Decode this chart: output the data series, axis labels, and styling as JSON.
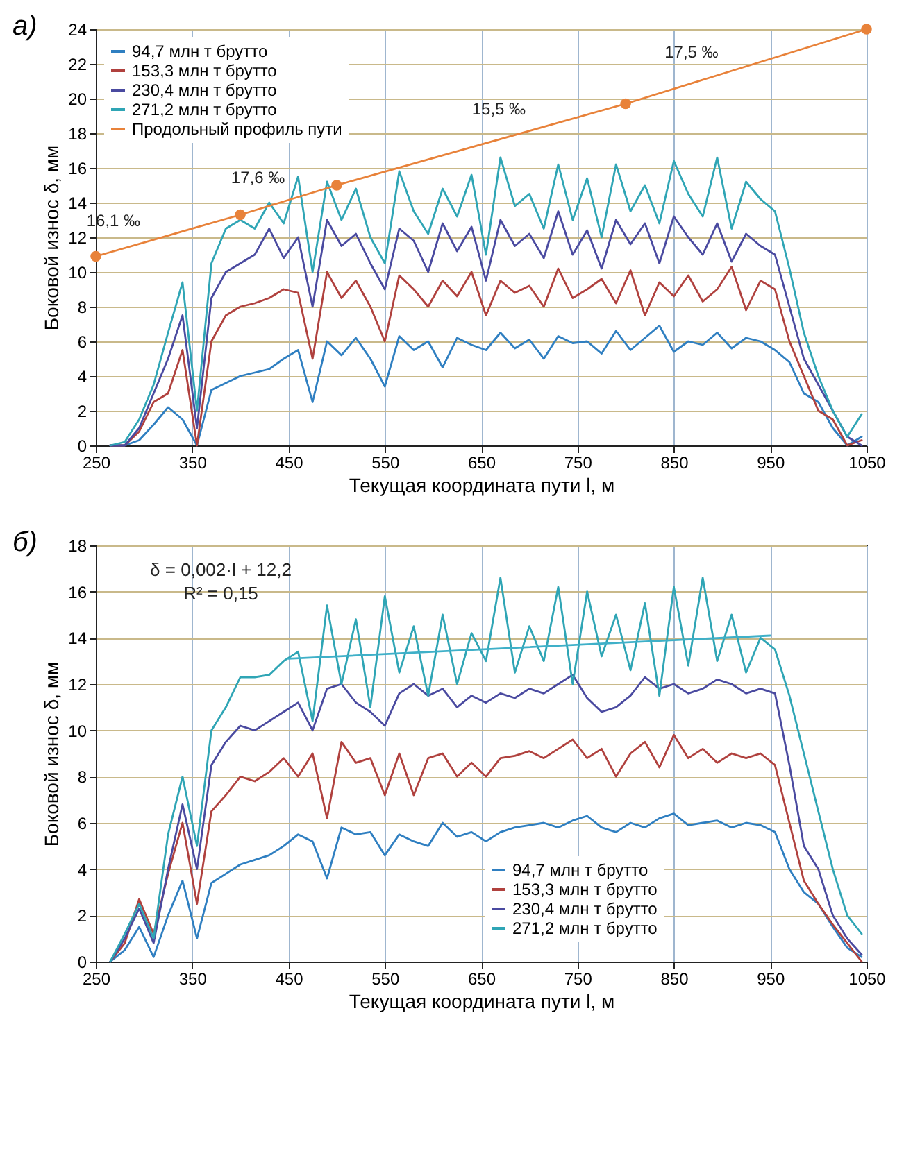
{
  "chart_data": [
    {
      "type": "line",
      "title": "а)",
      "xlabel": "Текущая координата пути l, м",
      "ylabel": "Боковой износ δ, мм",
      "x": [
        265,
        280,
        295,
        310,
        325,
        340,
        355,
        370,
        385,
        400,
        415,
        430,
        445,
        460,
        475,
        490,
        505,
        520,
        535,
        550,
        565,
        580,
        595,
        610,
        625,
        640,
        655,
        670,
        685,
        700,
        715,
        730,
        745,
        760,
        775,
        790,
        805,
        820,
        835,
        850,
        865,
        880,
        895,
        910,
        925,
        940,
        955,
        970,
        985,
        1000,
        1015,
        1030,
        1045
      ],
      "xlim": [
        250,
        1050
      ],
      "xticks": [
        250,
        350,
        450,
        550,
        650,
        750,
        850,
        950,
        1050
      ],
      "ylim": [
        0,
        24
      ],
      "yticks": [
        0,
        2,
        4,
        6,
        8,
        10,
        12,
        14,
        16,
        18,
        20,
        22,
        24
      ],
      "grid": true,
      "legend": "top left",
      "series": [
        {
          "name": "94,7 млн т брутто",
          "color": "#2f7fc1",
          "values": [
            0,
            0,
            0.3,
            1.2,
            2.2,
            1.5,
            0,
            3.2,
            3.6,
            4.0,
            4.2,
            4.4,
            5.0,
            5.5,
            2.5,
            6.0,
            5.2,
            6.2,
            5.0,
            3.4,
            6.3,
            5.5,
            6.0,
            4.5,
            6.2,
            5.8,
            5.5,
            6.5,
            5.6,
            6.1,
            5.0,
            6.3,
            5.9,
            6.0,
            5.3,
            6.6,
            5.5,
            6.2,
            6.9,
            5.4,
            6.0,
            5.8,
            6.5,
            5.6,
            6.2,
            6.0,
            5.5,
            4.8,
            3.0,
            2.5,
            1.0,
            0,
            0.5
          ]
        },
        {
          "name": "153,3 млн т брутто",
          "color": "#b0413e",
          "values": [
            0,
            0,
            0.8,
            2.5,
            3.0,
            5.5,
            0,
            6.0,
            7.5,
            8.0,
            8.2,
            8.5,
            9.0,
            8.8,
            5.0,
            10.0,
            8.5,
            9.5,
            8.0,
            6.0,
            9.8,
            9.0,
            8.0,
            9.5,
            8.6,
            10.0,
            7.5,
            9.5,
            8.8,
            9.2,
            8.0,
            10.2,
            8.5,
            9.0,
            9.6,
            8.2,
            10.1,
            7.5,
            9.4,
            8.6,
            9.8,
            8.3,
            9.0,
            10.3,
            7.8,
            9.5,
            9.0,
            6.0,
            4.0,
            2.0,
            1.5,
            0,
            0.3
          ]
        },
        {
          "name": "230,4 млн т брутто",
          "color": "#4a4aa0",
          "values": [
            0,
            0,
            1.0,
            3.0,
            5.0,
            7.5,
            1.0,
            8.5,
            10.0,
            10.5,
            11.0,
            12.5,
            10.8,
            12.0,
            8.0,
            13.0,
            11.5,
            12.2,
            10.5,
            9.0,
            12.5,
            11.8,
            10.0,
            12.8,
            11.2,
            12.6,
            9.5,
            13.0,
            11.5,
            12.2,
            10.8,
            13.5,
            11.0,
            12.4,
            10.2,
            13.0,
            11.6,
            12.8,
            10.5,
            13.2,
            12.0,
            11.0,
            12.8,
            10.6,
            12.2,
            11.5,
            11.0,
            8.0,
            5.0,
            3.5,
            2.0,
            0.5,
            0
          ]
        },
        {
          "name": "271,2 млн т брутто",
          "color": "#2fa5b5",
          "values": [
            0,
            0.2,
            1.5,
            3.5,
            6.5,
            9.4,
            2.0,
            10.5,
            12.5,
            13.0,
            12.5,
            14.0,
            12.8,
            15.5,
            10.0,
            15.2,
            13.0,
            14.8,
            12.0,
            10.5,
            15.8,
            13.5,
            12.2,
            14.8,
            13.2,
            15.6,
            11.0,
            16.6,
            13.8,
            14.5,
            12.5,
            16.2,
            13.0,
            15.4,
            12.0,
            16.2,
            13.5,
            15.0,
            12.8,
            16.4,
            14.5,
            13.2,
            16.6,
            12.5,
            15.2,
            14.2,
            13.5,
            10.2,
            6.5,
            4.0,
            2.0,
            0.5,
            1.8
          ]
        },
        {
          "name": "Продольный профиль пути",
          "color": "#e8823a",
          "marker": "circle",
          "x": [
            250,
            400,
            500,
            800,
            1050
          ],
          "values": [
            10.9,
            13.3,
            15.0,
            19.7,
            24
          ]
        }
      ],
      "annotations": [
        {
          "text": "16,1 ‰",
          "x": 300,
          "y": 11.7
        },
        {
          "text": "17,6 ‰",
          "x": 450,
          "y": 14.15
        },
        {
          "text": "15,5 ‰",
          "x": 700,
          "y": 18.13
        },
        {
          "text": "17,5 ‰",
          "x": 900,
          "y": 21.42
        }
      ]
    },
    {
      "type": "line",
      "title": "б)",
      "xlabel": "Текущая координата пути l, м",
      "ylabel": "Боковой износ δ, мм",
      "x": [
        265,
        280,
        295,
        310,
        325,
        340,
        355,
        370,
        385,
        400,
        415,
        430,
        445,
        460,
        475,
        490,
        505,
        520,
        535,
        550,
        565,
        580,
        595,
        610,
        625,
        640,
        655,
        670,
        685,
        700,
        715,
        730,
        745,
        760,
        775,
        790,
        805,
        820,
        835,
        850,
        865,
        880,
        895,
        910,
        925,
        940,
        955,
        970,
        985,
        1000,
        1015,
        1030,
        1045
      ],
      "xlim": [
        250,
        1050
      ],
      "xticks": [
        250,
        350,
        450,
        550,
        650,
        750,
        850,
        950,
        1050
      ],
      "ylim": [
        0,
        18
      ],
      "yticks": [
        0,
        2,
        4,
        6,
        8,
        10,
        12,
        14,
        16,
        18
      ],
      "grid": true,
      "legend": "bottom right",
      "series": [
        {
          "name": "94,7 млн т брутто",
          "color": "#2f7fc1",
          "values": [
            0,
            0.5,
            1.5,
            0.2,
            2.0,
            3.5,
            1.0,
            3.4,
            3.8,
            4.2,
            4.4,
            4.6,
            5.0,
            5.5,
            5.2,
            3.6,
            5.8,
            5.5,
            5.6,
            4.6,
            5.5,
            5.2,
            5.0,
            6.0,
            5.4,
            5.6,
            5.2,
            5.6,
            5.8,
            5.9,
            6.0,
            5.8,
            6.1,
            6.3,
            5.8,
            5.6,
            6.0,
            5.8,
            6.2,
            6.4,
            5.9,
            6.0,
            6.1,
            5.8,
            6.0,
            5.9,
            5.6,
            4.0,
            3.0,
            2.5,
            1.5,
            0.6,
            0.2
          ]
        },
        {
          "name": "153,3 млн т брутто",
          "color": "#b0413e",
          "values": [
            0,
            0.8,
            2.7,
            1.2,
            3.8,
            6.0,
            2.5,
            6.5,
            7.2,
            8.0,
            7.8,
            8.2,
            8.8,
            8.0,
            9.0,
            6.2,
            9.5,
            8.6,
            8.8,
            7.2,
            9.0,
            7.2,
            8.8,
            9.0,
            8.0,
            8.6,
            8.0,
            8.8,
            8.9,
            9.1,
            8.8,
            9.2,
            9.6,
            8.8,
            9.2,
            8.0,
            9.0,
            9.5,
            8.4,
            9.8,
            8.8,
            9.2,
            8.6,
            9.0,
            8.8,
            9.0,
            8.5,
            6.0,
            3.5,
            2.5,
            1.6,
            0.8,
            0
          ]
        },
        {
          "name": "230,4 млн т брутто",
          "color": "#4a4aa0",
          "values": [
            0,
            1.0,
            2.3,
            0.8,
            4.0,
            6.8,
            4.0,
            8.5,
            9.5,
            10.2,
            10.0,
            10.4,
            10.8,
            11.2,
            10.0,
            11.8,
            12.0,
            11.2,
            10.8,
            10.2,
            11.6,
            12.0,
            11.5,
            11.8,
            11.0,
            11.5,
            11.2,
            11.6,
            11.4,
            11.8,
            11.6,
            12.0,
            12.4,
            11.4,
            10.8,
            11.0,
            11.5,
            12.3,
            11.8,
            12.0,
            11.6,
            11.8,
            12.2,
            12.0,
            11.6,
            11.8,
            11.6,
            8.5,
            5.0,
            4.0,
            2.0,
            1.0,
            0.3
          ]
        },
        {
          "name": "271,2 млн т брутто",
          "color": "#2fa5b5",
          "values": [
            0,
            1.2,
            2.5,
            1.0,
            5.5,
            8.0,
            5.0,
            10.0,
            11.0,
            12.3,
            12.3,
            12.4,
            13.0,
            13.4,
            10.4,
            15.4,
            12.0,
            14.8,
            11.0,
            15.8,
            12.5,
            14.5,
            11.5,
            15.0,
            12.0,
            14.2,
            13.0,
            16.6,
            12.5,
            14.5,
            13.0,
            16.2,
            12.0,
            16.0,
            13.2,
            15.0,
            12.6,
            15.5,
            11.5,
            16.2,
            12.8,
            16.6,
            13.0,
            15.0,
            12.5,
            14.0,
            13.5,
            11.5,
            9.0,
            6.5,
            4.0,
            2.0,
            1.2
          ]
        },
        {
          "type": "line",
          "color": "#3fb0c8",
          "x": [
            450,
            950
          ],
          "values": [
            13.1,
            14.1
          ]
        }
      ],
      "annotations": [
        "δ = 0,002·l + 12,2",
        "R² = 0,15"
      ]
    }
  ]
}
